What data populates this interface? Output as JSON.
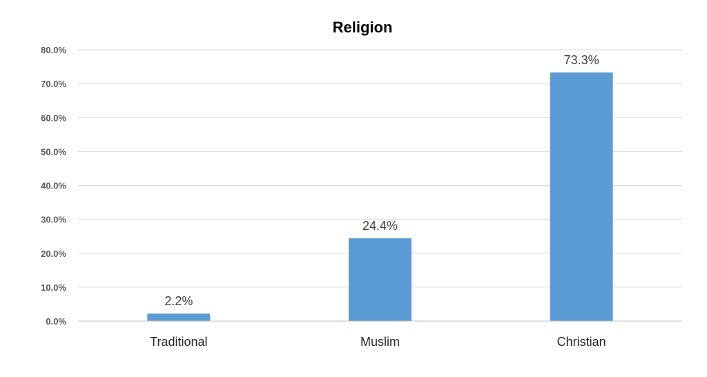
{
  "chart_data": {
    "type": "bar",
    "title": "Religion",
    "xlabel": "",
    "ylabel": "",
    "categories": [
      "Traditional",
      "Muslim",
      "Christian"
    ],
    "values": [
      2.2,
      24.4,
      73.3
    ],
    "data_labels": [
      "2.2%",
      "24.4%",
      "73.3%"
    ],
    "ylim": [
      0,
      80
    ],
    "yticks": [
      0,
      10,
      20,
      30,
      40,
      50,
      60,
      70,
      80
    ],
    "ytick_labels": [
      "0.0%",
      "10.0%",
      "20.0%",
      "30.0%",
      "40.0%",
      "50.0%",
      "60.0%",
      "70.0%",
      "80.0%"
    ],
    "grid": true,
    "legend": "none",
    "bar_color": "#5B9BD5"
  }
}
